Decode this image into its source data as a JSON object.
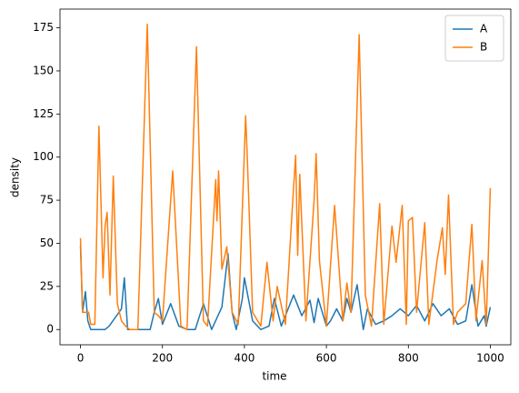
{
  "chart_data": {
    "type": "line",
    "xlabel": "time",
    "ylabel": "density",
    "xlim": [
      -50,
      1050
    ],
    "xticks": [
      0,
      200,
      400,
      600,
      800,
      1000
    ],
    "ylim": [
      -8.85,
      185.85
    ],
    "yticks": [
      0,
      25,
      50,
      75,
      100,
      125,
      150,
      175
    ],
    "grid": false,
    "legend": "upper right",
    "series": [
      {
        "name": "A",
        "color": "#1f77b4",
        "x": [
          0,
          5,
          12,
          18,
          25,
          60,
          70,
          85,
          100,
          107,
          115,
          170,
          180,
          190,
          200,
          220,
          240,
          260,
          280,
          300,
          320,
          345,
          360,
          370,
          380,
          395,
          400,
          420,
          440,
          460,
          473,
          490,
          520,
          540,
          560,
          570,
          580,
          600,
          610,
          625,
          640,
          650,
          660,
          675,
          690,
          700,
          720,
          740,
          760,
          780,
          800,
          820,
          840,
          860,
          880,
          900,
          920,
          940,
          955,
          970,
          985,
          990,
          1000
        ],
        "values": [
          49,
          10,
          22,
          5,
          0,
          0,
          2,
          7,
          12,
          30,
          0,
          0,
          10,
          18,
          3,
          15,
          2,
          0,
          0,
          15,
          0,
          13,
          44,
          10,
          0,
          18,
          30,
          5,
          0,
          2,
          18,
          2,
          20,
          8,
          17,
          4,
          18,
          2,
          5,
          12,
          5,
          18,
          10,
          26,
          0,
          12,
          3,
          5,
          8,
          12,
          8,
          14,
          5,
          15,
          8,
          12,
          3,
          5,
          26,
          2,
          8,
          2,
          13
        ]
      },
      {
        "name": "B",
        "color": "#ff7f0e",
        "x": [
          0,
          5,
          10,
          20,
          25,
          35,
          45,
          55,
          60,
          65,
          72,
          80,
          90,
          100,
          110,
          120,
          140,
          163,
          180,
          190,
          200,
          225,
          245,
          260,
          283,
          300,
          310,
          330,
          333,
          337,
          345,
          357,
          370,
          385,
          403,
          407,
          420,
          440,
          455,
          470,
          480,
          500,
          518,
          525,
          530,
          535,
          550,
          570,
          575,
          583,
          600,
          620,
          640,
          650,
          660,
          680,
          695,
          710,
          730,
          740,
          760,
          770,
          785,
          795,
          800,
          810,
          820,
          840,
          850,
          870,
          883,
          890,
          898,
          910,
          920,
          940,
          955,
          965,
          980,
          990,
          1000
        ],
        "values": [
          53,
          10,
          10,
          10,
          3,
          3,
          118,
          30,
          60,
          68,
          20,
          89,
          15,
          5,
          2,
          0,
          0,
          177,
          10,
          8,
          5,
          92,
          2,
          0,
          164,
          5,
          2,
          87,
          63,
          92,
          35,
          48,
          10,
          3,
          124,
          100,
          10,
          2,
          39,
          5,
          25,
          3,
          75,
          101,
          43,
          90,
          5,
          75,
          102,
          40,
          2,
          72,
          5,
          27,
          10,
          171,
          20,
          2,
          73,
          3,
          60,
          39,
          72,
          3,
          63,
          65,
          10,
          62,
          3,
          40,
          59,
          32,
          78,
          3,
          10,
          15,
          61,
          5,
          40,
          3,
          82
        ]
      }
    ]
  }
}
